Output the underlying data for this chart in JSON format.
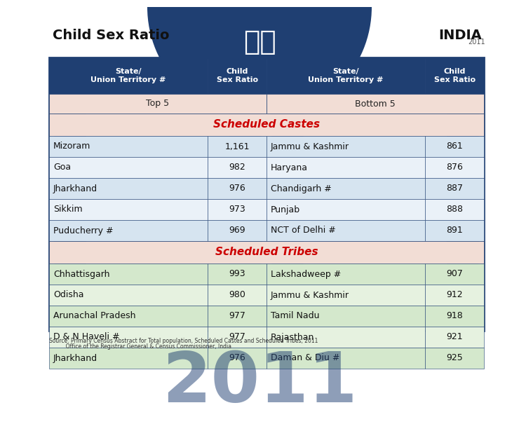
{
  "title_left": "Child Sex Ratio",
  "title_right": "INDIA",
  "header_bg": "#1f3f72",
  "header_text_color": "#ffffff",
  "subheader_bg": "#f2ddd5",
  "subheader_text_color": "#333333",
  "sc_section_label": "Scheduled Castes",
  "st_section_label": "Scheduled Tribes",
  "section_label_color": "#cc0000",
  "sc_row_bg_odd": "#d6e4f0",
  "sc_row_bg_even": "#eaf1f8",
  "st_row_bg_odd": "#d4e8cc",
  "st_row_bg_even": "#e6f2e0",
  "border_color": "#1f3f72",
  "col_headers": [
    "State/\nUnion Territory #",
    "Child\nSex Ratio",
    "State/\nUnion Territory #",
    "Child\nSex Ratio"
  ],
  "sc_top5": [
    [
      "Mizoram",
      "1,161",
      "Jammu & Kashmir",
      "861"
    ],
    [
      "Goa",
      "982",
      "Haryana",
      "876"
    ],
    [
      "Jharkhand",
      "976",
      "Chandigarh #",
      "887"
    ],
    [
      "Sikkim",
      "973",
      "Punjab",
      "888"
    ],
    [
      "Puducherry #",
      "969",
      "NCT of Delhi #",
      "891"
    ]
  ],
  "st_top5": [
    [
      "Chhattisgarh",
      "993",
      "Lakshadweep #",
      "907"
    ],
    [
      "Odisha",
      "980",
      "Jammu & Kashmir",
      "912"
    ],
    [
      "Arunachal Pradesh",
      "977",
      "Tamil Nadu",
      "918"
    ],
    [
      "D & N Haveli #",
      "977",
      "Rajasthan",
      "921"
    ],
    [
      "Jharkhand",
      "976",
      "Daman & Diu #",
      "925"
    ]
  ],
  "source_line1": "Source: Primary Census Abstract for Total population, Scheduled Castes and Scheduled Tribes, 2011",
  "source_line2": "          Office of the Registrar General & Census Commissioner, India",
  "watermark": "2011",
  "outer_bg": "#ffffff"
}
